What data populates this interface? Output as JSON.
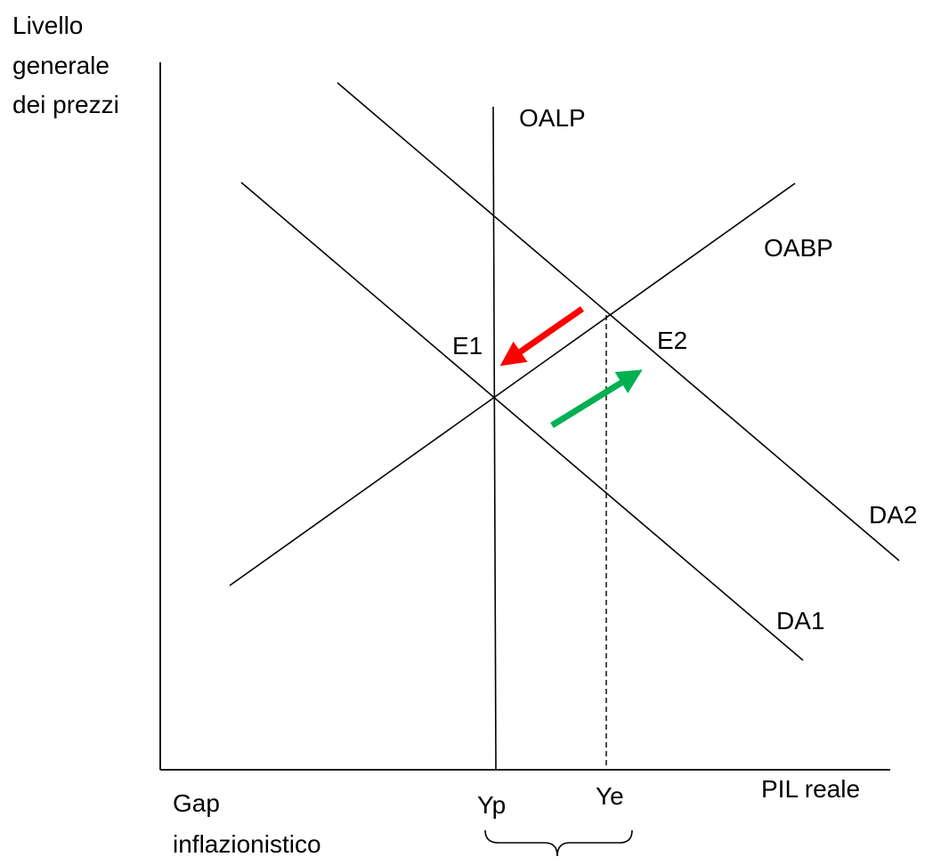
{
  "diagram": {
    "y_axis_label": [
      "Livello",
      "generale",
      "dei prezzi"
    ],
    "x_axis_label": "PIL reale",
    "curves": {
      "long_run_supply": "OALP",
      "short_run_supply": "OABP",
      "demand_1": "DA1",
      "demand_2": "DA2"
    },
    "equilibria": {
      "e1": "E1",
      "e2": "E2"
    },
    "output_levels": {
      "potential": "Yp",
      "equilibrium": "Ye"
    },
    "gap_label": [
      "Gap",
      "inflazionistico"
    ],
    "arrows": {
      "shift_back_color": "#ff0000",
      "shift_out_color": "#00b050"
    }
  }
}
